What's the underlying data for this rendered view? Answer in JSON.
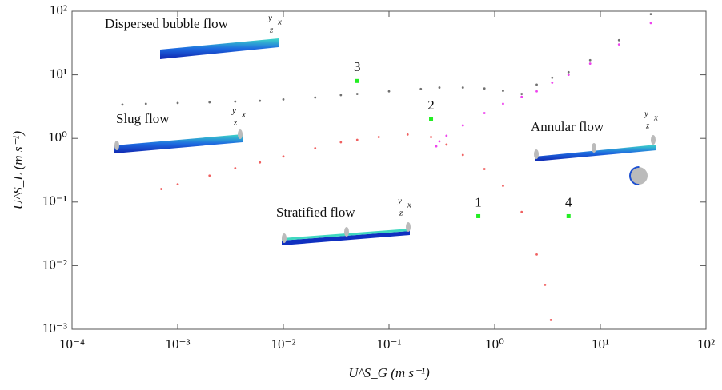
{
  "chart_data": {
    "type": "scatter",
    "xlabel": "U^S_G (m s⁻¹)",
    "ylabel": "U^S_L (m s⁻¹)",
    "xscale": "log",
    "yscale": "log",
    "xlim": [
      0.0001,
      100
    ],
    "ylim": [
      0.001,
      100
    ],
    "xticks": [
      {
        "value": 0.0001,
        "label": "10⁻⁴"
      },
      {
        "value": 0.001,
        "label": "10⁻³"
      },
      {
        "value": 0.01,
        "label": "10⁻²"
      },
      {
        "value": 0.1,
        "label": "10⁻¹"
      },
      {
        "value": 1,
        "label": "10⁰"
      },
      {
        "value": 10,
        "label": "10¹"
      },
      {
        "value": 100,
        "label": "10²"
      }
    ],
    "yticks": [
      {
        "value": 0.001,
        "label": "10⁻³"
      },
      {
        "value": 0.01,
        "label": "10⁻²"
      },
      {
        "value": 0.1,
        "label": "10⁻¹"
      },
      {
        "value": 1,
        "label": "10⁰"
      },
      {
        "value": 10,
        "label": "10¹"
      },
      {
        "value": 100,
        "label": "10²"
      }
    ],
    "series": [
      {
        "color": "#707070",
        "x": [
          0.0003,
          0.0005,
          0.001,
          0.002,
          0.0035,
          0.006,
          0.01,
          0.02,
          0.035,
          0.05,
          0.1,
          0.2,
          0.3,
          0.5,
          0.8,
          1.2,
          1.8,
          2.5,
          3.5,
          5,
          8,
          15,
          30
        ],
        "values": [
          3.4,
          3.5,
          3.6,
          3.7,
          3.8,
          3.9,
          4.1,
          4.4,
          4.8,
          5.0,
          5.5,
          6.0,
          6.3,
          6.3,
          6.1,
          5.6,
          5.0,
          7.0,
          9.0,
          11,
          17,
          35,
          90
        ]
      },
      {
        "color": "#f06060",
        "x": [
          0.0007,
          0.001,
          0.002,
          0.0035,
          0.006,
          0.01,
          0.02,
          0.035,
          0.05,
          0.08,
          0.15,
          0.25,
          0.35,
          0.5,
          0.8,
          1.2,
          1.8,
          2.5,
          3.0,
          3.4
        ],
        "values": [
          0.16,
          0.19,
          0.26,
          0.34,
          0.42,
          0.52,
          0.7,
          0.87,
          0.95,
          1.05,
          1.15,
          1.05,
          0.8,
          0.55,
          0.33,
          0.18,
          0.07,
          0.015,
          0.005,
          0.0014
        ]
      },
      {
        "color": "#ee44ee",
        "x": [
          0.28,
          0.3,
          0.35,
          0.5,
          0.8,
          1.2,
          1.8,
          2.5,
          3.5,
          5,
          8,
          15,
          30
        ],
        "values": [
          0.75,
          0.9,
          1.1,
          1.6,
          2.5,
          3.5,
          4.5,
          5.5,
          7.5,
          10,
          15,
          30,
          65
        ]
      }
    ],
    "points": {
      "color": "#22ee22",
      "x": [
        0.7,
        0.25,
        0.05,
        5
      ],
      "values": [
        0.06,
        2.0,
        8,
        0.06
      ],
      "labels": [
        "1",
        "2",
        "3",
        "4"
      ]
    },
    "regime_labels": [
      "Dispersed bubble flow",
      "Slug flow",
      "Annular flow",
      "Stratified flow"
    ],
    "axis_glyph_labels": [
      "y",
      "x",
      "z"
    ]
  }
}
